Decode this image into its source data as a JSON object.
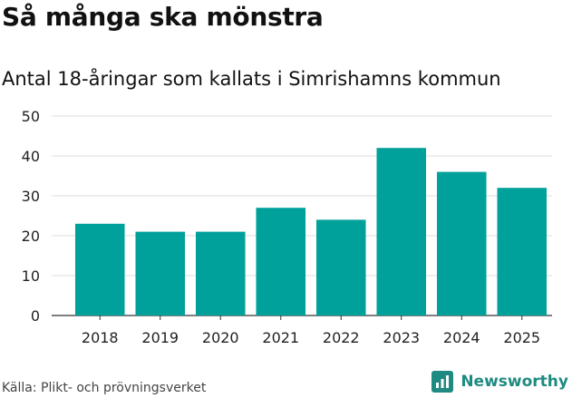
{
  "header": {
    "title": "Så många ska mönstra",
    "subtitle": "Antal 18-åringar som kallats i Simrishamns kommun"
  },
  "footer": {
    "source": "Källa: Plikt- och prövningsverket",
    "brand": "Newsworthy"
  },
  "colors": {
    "bar": "#00a19a",
    "brand": "#1f8a82"
  },
  "chart_data": {
    "type": "bar",
    "categories": [
      "2018",
      "2019",
      "2020",
      "2021",
      "2022",
      "2023",
      "2024",
      "2025"
    ],
    "values": [
      23,
      21,
      21,
      27,
      24,
      42,
      36,
      32
    ],
    "ylim": [
      0,
      50
    ],
    "yticks": [
      0,
      10,
      20,
      30,
      40,
      50
    ],
    "grid": true,
    "legend": "none"
  }
}
